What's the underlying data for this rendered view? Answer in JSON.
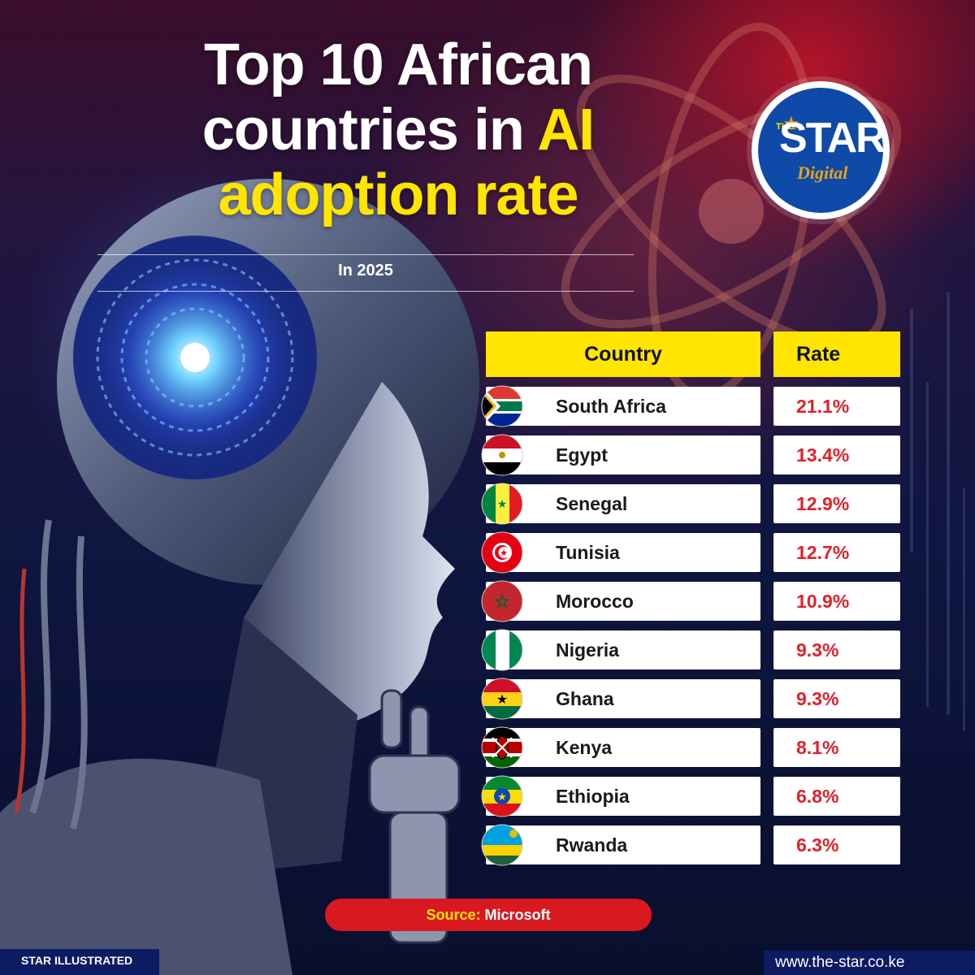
{
  "header": {
    "title_line1": "Top 10 African",
    "title_line2_a": "countries in ",
    "title_line2_b": "AI",
    "title_line3": "adoption rate",
    "subtitle": "In 2025"
  },
  "logo": {
    "the": "THE",
    "star": "STAR",
    "digital": "Digital"
  },
  "colors": {
    "accent_yellow": "#ffe500",
    "value_red": "#e3202a",
    "source_red": "#d81920",
    "brand_blue": "#0d1b63"
  },
  "chart_data": {
    "type": "table",
    "columns": [
      "Country",
      "Rate"
    ],
    "rows": [
      {
        "country": "South Africa",
        "rate": "21.1%",
        "value": 21.1,
        "flag": "south-africa-flag"
      },
      {
        "country": "Egypt",
        "rate": "13.4%",
        "value": 13.4,
        "flag": "egypt-flag"
      },
      {
        "country": "Senegal",
        "rate": "12.9%",
        "value": 12.9,
        "flag": "senegal-flag"
      },
      {
        "country": "Tunisia",
        "rate": "12.7%",
        "value": 12.7,
        "flag": "tunisia-flag"
      },
      {
        "country": "Morocco",
        "rate": "10.9%",
        "value": 10.9,
        "flag": "morocco-flag"
      },
      {
        "country": "Nigeria",
        "rate": "9.3%",
        "value": 9.3,
        "flag": "nigeria-flag"
      },
      {
        "country": "Ghana",
        "rate": "9.3%",
        "value": 9.3,
        "flag": "ghana-flag"
      },
      {
        "country": "Kenya",
        "rate": "8.1%",
        "value": 8.1,
        "flag": "kenya-flag"
      },
      {
        "country": "Ethiopia",
        "rate": "6.8%",
        "value": 6.8,
        "flag": "ethiopia-flag"
      },
      {
        "country": "Rwanda",
        "rate": "6.3%",
        "value": 6.3,
        "flag": "rwanda-flag"
      }
    ]
  },
  "source": {
    "label": "Source:",
    "value": "Microsoft"
  },
  "footer": {
    "left": "STAR ILLUSTRATED",
    "right": "www.the-star.co.ke"
  }
}
